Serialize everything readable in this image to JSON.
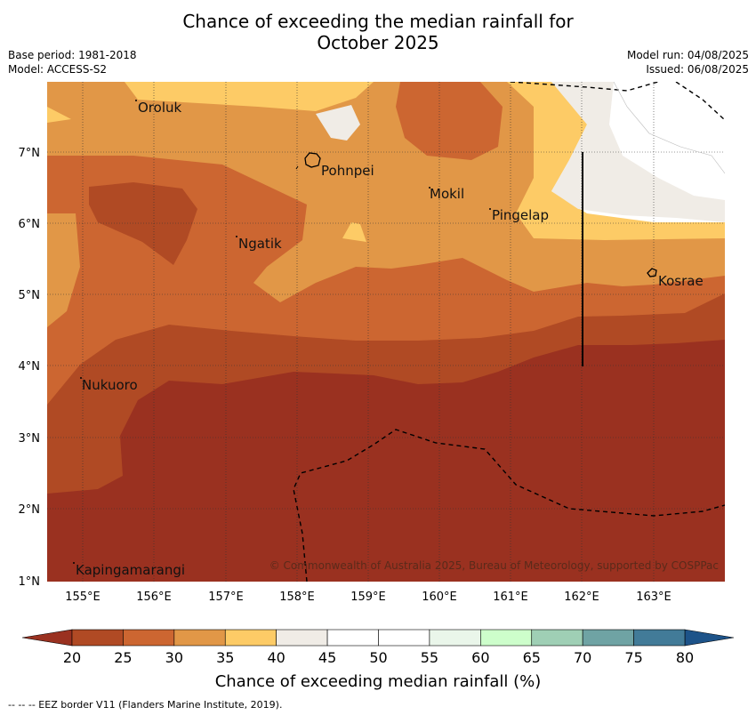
{
  "title_line1": "Chance of exceeding the median rainfall for",
  "title_line2": "October 2025",
  "meta": {
    "base_period": "Base period: 1981-2018",
    "model": "Model: ACCESS-S2",
    "model_run": "Model run: 04/08/2025",
    "issued": "Issued: 06/08/2025"
  },
  "map": {
    "lon_ticks": [
      "155°E",
      "156°E",
      "157°E",
      "158°E",
      "159°E",
      "160°E",
      "161°E",
      "162°E",
      "163°E"
    ],
    "lat_ticks": [
      "7°N",
      "6°N",
      "5°N",
      "4°N",
      "3°N",
      "2°N",
      "1°N"
    ],
    "places": [
      {
        "name": "Oroluk"
      },
      {
        "name": "Pohnpei"
      },
      {
        "name": "Mokil"
      },
      {
        "name": "Pingelap"
      },
      {
        "name": "Ngatik"
      },
      {
        "name": "Kosrae"
      },
      {
        "name": "Nukuoro"
      },
      {
        "name": "Kapingamarangi"
      }
    ],
    "copyright": "© Commonwealth of Australia 2025, Bureau of Meteorology, supported by COSPPac"
  },
  "colorbar": {
    "ticks": [
      "20",
      "25",
      "30",
      "35",
      "40",
      "45",
      "50",
      "55",
      "60",
      "65",
      "70",
      "75",
      "80"
    ],
    "colors": [
      "#b04a24",
      "#cc6631",
      "#e19747",
      "#fdcb66",
      "#f0ece6",
      "#ffffff",
      "#ffffff",
      "#eaf6ea",
      "#cdfecb",
      "#9fcfb5",
      "#6fa3a4",
      "#427b98"
    ],
    "under_color": "#9a3120",
    "over_color": "#1d5389",
    "title": "Chance of exceeding median rainfall (%)"
  },
  "footer": "--  --  -- EEZ border V11 (Flanders Marine Institute, 2019)."
}
